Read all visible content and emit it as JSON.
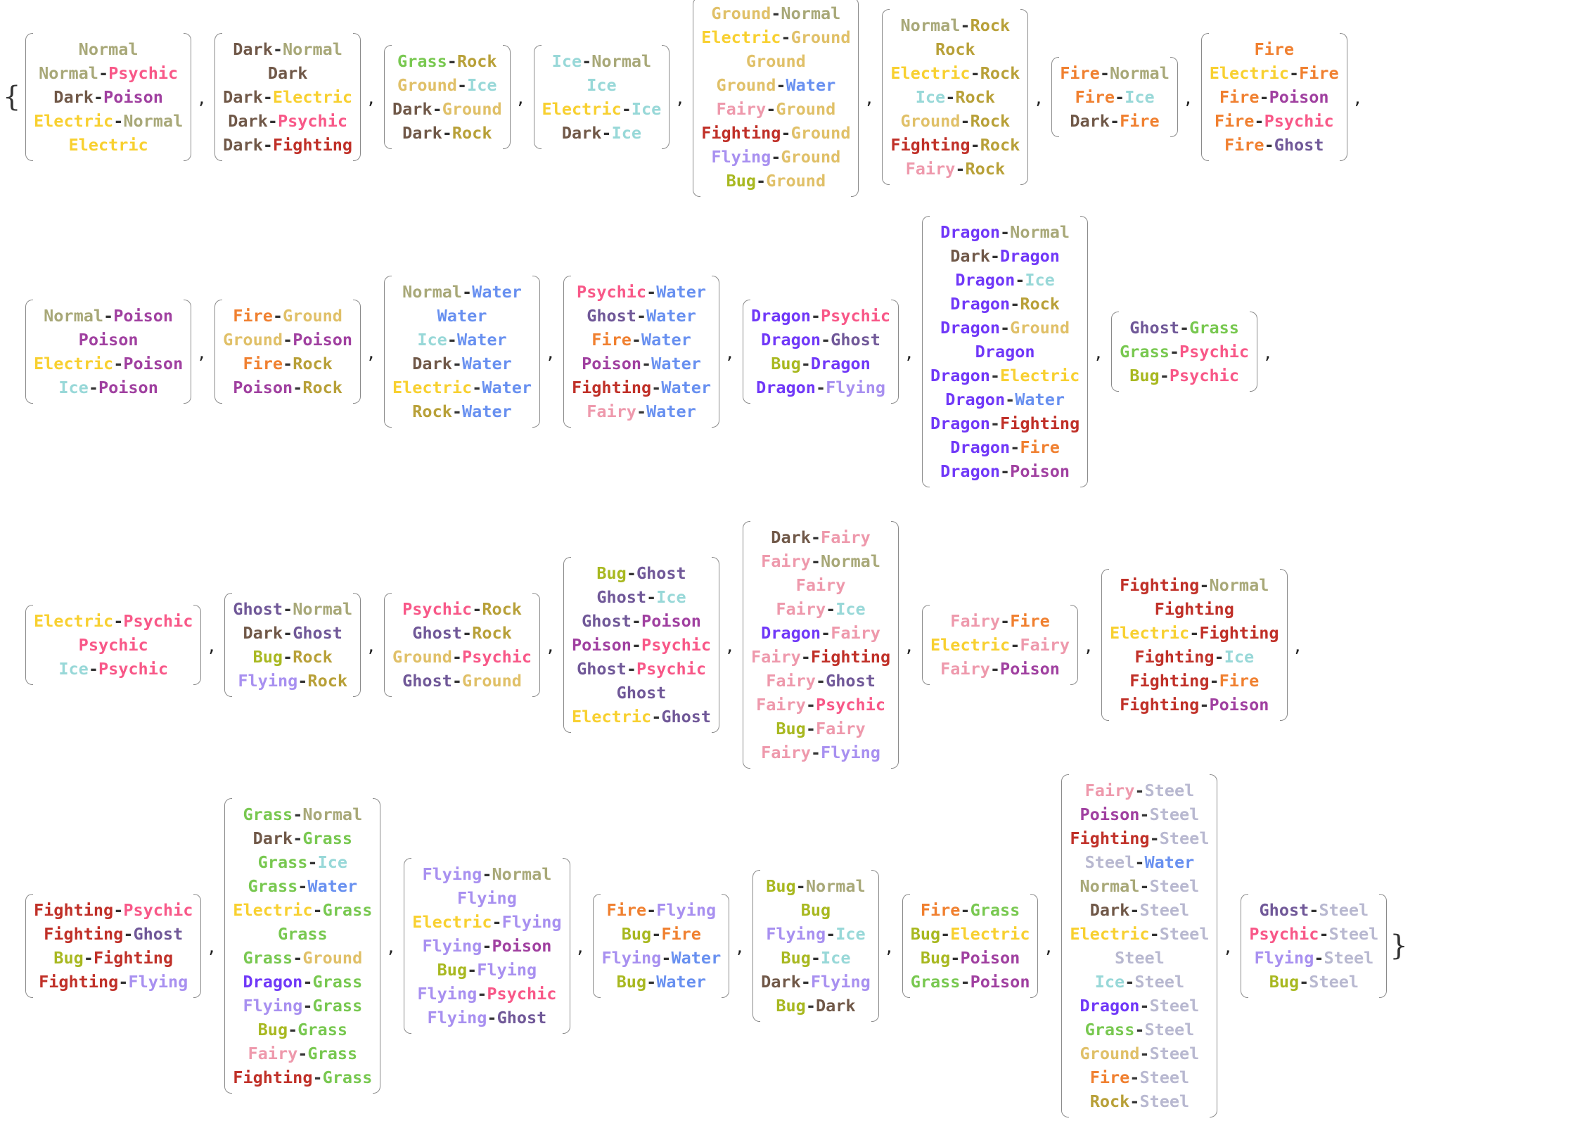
{
  "colors": {
    "Normal": "#A8A878",
    "Psychic": "#F85888",
    "Dark": "#705848",
    "Poison": "#A040A0",
    "Electric": "#F8D030",
    "Grass": "#78C850",
    "Rock": "#B8A038",
    "Ground": "#E0C068",
    "Ice": "#98D8D8",
    "Water": "#6890F0",
    "Fairy": "#EE99AC",
    "Fighting": "#C03028",
    "Flying": "#A890F0",
    "Bug": "#A8B820",
    "Fire": "#F08030",
    "Ghost": "#705898",
    "Dragon": "#7038F8",
    "Steel": "#B8B8D0",
    "Hyphen": "#333333"
  },
  "braces": {
    "open": "{",
    "close": "}",
    "separator": ","
  },
  "rows": [
    [
      [
        "Normal",
        "Normal-Psychic",
        "Dark-Poison",
        "Electric-Normal",
        "Electric"
      ],
      [
        "Dark-Normal",
        "Dark",
        "Dark-Electric",
        "Dark-Psychic",
        "Dark-Fighting"
      ],
      [
        "Grass-Rock",
        "Ground-Ice",
        "Dark-Ground",
        "Dark-Rock"
      ],
      [
        "Ice-Normal",
        "Ice",
        "Electric-Ice",
        "Dark-Ice"
      ],
      [
        "Ground-Normal",
        "Electric-Ground",
        "Ground",
        "Ground-Water",
        "Fairy-Ground",
        "Fighting-Ground",
        "Flying-Ground",
        "Bug-Ground"
      ],
      [
        "Normal-Rock",
        "Rock",
        "Electric-Rock",
        "Ice-Rock",
        "Ground-Rock",
        "Fighting-Rock",
        "Fairy-Rock"
      ],
      [
        "Fire-Normal",
        "Fire-Ice",
        "Dark-Fire"
      ],
      [
        "Fire",
        "Electric-Fire",
        "Fire-Poison",
        "Fire-Psychic",
        "Fire-Ghost"
      ]
    ],
    [
      [
        "Normal-Poison",
        "Poison",
        "Electric-Poison",
        "Ice-Poison"
      ],
      [
        "Fire-Ground",
        "Ground-Poison",
        "Fire-Rock",
        "Poison-Rock"
      ],
      [
        "Normal-Water",
        "Water",
        "Ice-Water",
        "Dark-Water",
        "Electric-Water",
        "Rock-Water"
      ],
      [
        "Psychic-Water",
        "Ghost-Water",
        "Fire-Water",
        "Poison-Water",
        "Fighting-Water",
        "Fairy-Water"
      ],
      [
        "Dragon-Psychic",
        "Dragon-Ghost",
        "Bug-Dragon",
        "Dragon-Flying"
      ],
      [
        "Dragon-Normal",
        "Dark-Dragon",
        "Dragon-Ice",
        "Dragon-Rock",
        "Dragon-Ground",
        "Dragon",
        "Dragon-Electric",
        "Dragon-Water",
        "Dragon-Fighting",
        "Dragon-Fire",
        "Dragon-Poison"
      ],
      [
        "Ghost-Grass",
        "Grass-Psychic",
        "Bug-Psychic"
      ]
    ],
    [
      [
        "Electric-Psychic",
        "Psychic",
        "Ice-Psychic"
      ],
      [
        "Ghost-Normal",
        "Dark-Ghost",
        "Bug-Rock",
        "Flying-Rock"
      ],
      [
        "Psychic-Rock",
        "Ghost-Rock",
        "Ground-Psychic",
        "Ghost-Ground"
      ],
      [
        "Bug-Ghost",
        "Ghost-Ice",
        "Ghost-Poison",
        "Poison-Psychic",
        "Ghost-Psychic",
        "Ghost",
        "Electric-Ghost"
      ],
      [
        "Dark-Fairy",
        "Fairy-Normal",
        "Fairy",
        "Fairy-Ice",
        "Dragon-Fairy",
        "Fairy-Fighting",
        "Fairy-Ghost",
        "Fairy-Psychic",
        "Bug-Fairy",
        "Fairy-Flying"
      ],
      [
        "Fairy-Fire",
        "Electric-Fairy",
        "Fairy-Poison"
      ],
      [
        "Fighting-Normal",
        "Fighting",
        "Electric-Fighting",
        "Fighting-Ice",
        "Fighting-Fire",
        "Fighting-Poison"
      ]
    ],
    [
      [
        "Fighting-Psychic",
        "Fighting-Ghost",
        "Bug-Fighting",
        "Fighting-Flying"
      ],
      [
        "Grass-Normal",
        "Dark-Grass",
        "Grass-Ice",
        "Grass-Water",
        "Electric-Grass",
        "Grass",
        "Grass-Ground",
        "Dragon-Grass",
        "Flying-Grass",
        "Bug-Grass",
        "Fairy-Grass",
        "Fighting-Grass"
      ],
      [
        "Flying-Normal",
        "Flying",
        "Electric-Flying",
        "Flying-Poison",
        "Bug-Flying",
        "Flying-Psychic",
        "Flying-Ghost"
      ],
      [
        "Fire-Flying",
        "Bug-Fire",
        "Flying-Water",
        "Bug-Water"
      ],
      [
        "Bug-Normal",
        "Bug",
        "Flying-Ice",
        "Bug-Ice",
        "Dark-Flying",
        "Bug-Dark"
      ],
      [
        "Fire-Grass",
        "Bug-Electric",
        "Bug-Poison",
        "Grass-Poison"
      ],
      [
        "Fairy-Steel",
        "Poison-Steel",
        "Fighting-Steel",
        "Steel-Water",
        "Normal-Steel",
        "Dark-Steel",
        "Electric-Steel",
        "Steel",
        "Ice-Steel",
        "Dragon-Steel",
        "Grass-Steel",
        "Ground-Steel",
        "Fire-Steel",
        "Rock-Steel"
      ],
      [
        "Ghost-Steel",
        "Psychic-Steel",
        "Flying-Steel",
        "Bug-Steel"
      ]
    ]
  ]
}
